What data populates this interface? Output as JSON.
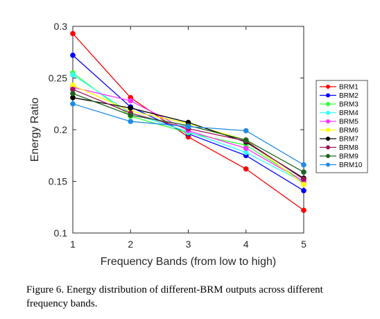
{
  "chart_data": {
    "type": "line",
    "xlabel": "Frequency Bands (from low to high)",
    "ylabel": "Energy Ratio",
    "x": [
      1,
      2,
      3,
      4,
      5
    ],
    "xlim": [
      1,
      5
    ],
    "ylim": [
      0.1,
      0.3
    ],
    "xticks": [
      "1",
      "2",
      "3",
      "4",
      "5"
    ],
    "yticks": [
      "0.1",
      "0.15",
      "0.2",
      "0.25",
      "0.3"
    ],
    "grid": false,
    "legend_position": "right",
    "series": [
      {
        "name": "BRM1",
        "color": "#ff0000",
        "values": [
          0.293,
          0.231,
          0.193,
          0.162,
          0.122
        ]
      },
      {
        "name": "BRM2",
        "color": "#0000ff",
        "values": [
          0.272,
          0.222,
          0.196,
          0.175,
          0.141
        ]
      },
      {
        "name": "BRM3",
        "color": "#33ff33",
        "values": [
          0.255,
          0.213,
          0.197,
          0.185,
          0.15
        ]
      },
      {
        "name": "BRM4",
        "color": "#33ffff",
        "values": [
          0.253,
          0.216,
          0.198,
          0.178,
          0.149
        ]
      },
      {
        "name": "BRM5",
        "color": "#ff33ff",
        "values": [
          0.241,
          0.228,
          0.199,
          0.182,
          0.15
        ]
      },
      {
        "name": "BRM6",
        "color": "#ffff00",
        "values": [
          0.243,
          0.218,
          0.206,
          0.19,
          0.147
        ]
      },
      {
        "name": "BRM7",
        "color": "#000000",
        "values": [
          0.231,
          0.221,
          0.207,
          0.188,
          0.153
        ]
      },
      {
        "name": "BRM8",
        "color": "#a0145a",
        "values": [
          0.239,
          0.216,
          0.201,
          0.189,
          0.152
        ]
      },
      {
        "name": "BRM9",
        "color": "#1e641e",
        "values": [
          0.235,
          0.214,
          0.204,
          0.19,
          0.159
        ]
      },
      {
        "name": "BRM10",
        "color": "#1e8ce6",
        "values": [
          0.225,
          0.208,
          0.203,
          0.199,
          0.166
        ]
      }
    ]
  },
  "caption": "Figure 6. Energy distribution of different-BRM outputs across different frequency bands."
}
